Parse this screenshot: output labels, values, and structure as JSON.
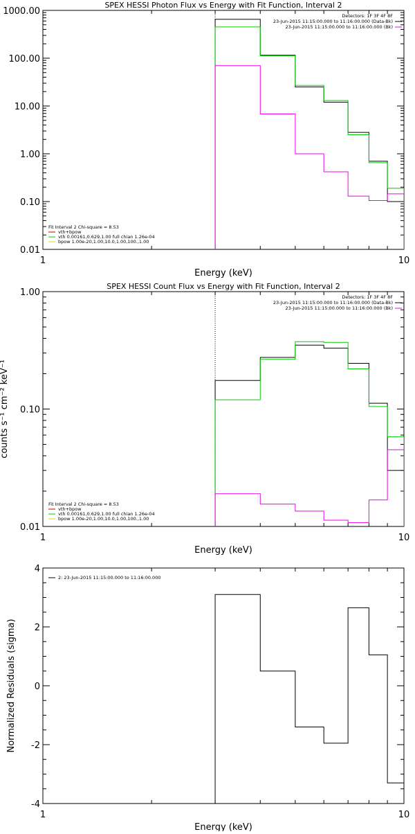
{
  "colors": {
    "data": "#000000",
    "background": "#ee00ee",
    "total_fit": "#00cc00",
    "vth": "#00cc00",
    "bpow": "#dddd00",
    "fit_function": "#cc0000"
  },
  "chart_data": [
    {
      "type": "line",
      "title": "SPEX HESSI Photon Flux vs Energy with Fit Function, Interval 2",
      "xlabel": "Energy (keV)",
      "ylabel": "",
      "xscale": "log",
      "yscale": "log",
      "xlim": [
        1,
        10
      ],
      "ylim": [
        0.01,
        1000
      ],
      "x_ticks": [
        "1",
        "10"
      ],
      "y_ticks": [
        "0.01",
        "0.10",
        "1.00",
        "10.00",
        "100.00",
        "1000.00"
      ],
      "vline_x": 3,
      "legend_position": "top-right",
      "legend": {
        "header": "Detectors: 1F 3F 4F 8F",
        "entries": [
          {
            "text": "23-Jun-2015 11:15:00.000 to 11:16:00.000 (Data-Bk)",
            "color": "#000000"
          },
          {
            "text": "23-Jun-2015 11:15:00.000 to 11:16:00.000 (Bk)",
            "color": "#ee00ee"
          }
        ]
      },
      "fit_box": {
        "header": "Fit Interval  2   Chi-square = 8.53",
        "entries": [
          {
            "text": "vth+bpow",
            "color": "#cc0000"
          },
          {
            "text": "vth 0.00161,0.629,1.00  full chian 1.26e-04",
            "color": "#00cc00"
          },
          {
            "text": "bpow 1.00e-20,1.00,10.0,1.00,100.,1.00",
            "color": "#dddd00"
          }
        ]
      },
      "bin_edges": [
        3,
        4,
        5,
        6,
        7,
        8,
        9,
        10
      ],
      "series": [
        {
          "name": "23-Jun-2015 11:15:00.000 to 11:16:00.000 (Data-Bk)",
          "color": "#000000",
          "values": [
            650,
            115,
            25,
            12,
            2.8,
            0.7,
            0.1
          ]
        },
        {
          "name": "vth+bpow",
          "color": "#00cc00",
          "values": [
            450,
            112,
            27,
            13,
            2.5,
            0.65,
            0.19
          ]
        },
        {
          "name": "23-Jun-2015 11:15:00.000 to 11:16:00.000 (Bk)",
          "color": "#ee00ee",
          "values": [
            70,
            6.8,
            1.0,
            0.42,
            0.13,
            0.105,
            0.145
          ]
        }
      ]
    },
    {
      "type": "line",
      "title": "SPEX HESSI Count Flux vs Energy with Fit Function, Interval 2",
      "xlabel": "Energy (keV)",
      "ylabel": "counts s⁻¹ cm⁻² keV⁻¹",
      "xscale": "log",
      "yscale": "log",
      "xlim": [
        1,
        10
      ],
      "ylim": [
        0.01,
        1
      ],
      "x_ticks": [
        "1",
        "10"
      ],
      "y_ticks": [
        "0.01",
        "0.10",
        "1.00"
      ],
      "vline_x": 3,
      "legend_position": "top-right",
      "legend": {
        "header": "Detectors: 1F 3F 4F 8F",
        "entries": [
          {
            "text": "23-Jun-2015 11:15:00.000 to 11:16:00.000 (Data-Bk)",
            "color": "#000000"
          },
          {
            "text": "23-Jun-2015 11:15:00.000 to 11:16:00.000 (Bk)",
            "color": "#ee00ee"
          }
        ]
      },
      "fit_box": {
        "header": "Fit Interval  2   Chi-square = 8.53",
        "entries": [
          {
            "text": "vth+bpow",
            "color": "#cc0000"
          },
          {
            "text": "vth 0.00161,0.629,1.00  full chian 1.26e-04",
            "color": "#00cc00"
          },
          {
            "text": "bpow 1.00e-20,1.00,10.0,1.00,100.,1.00",
            "color": "#dddd00"
          }
        ]
      },
      "bin_edges": [
        3,
        4,
        5,
        6,
        7,
        8,
        9,
        10
      ],
      "series": [
        {
          "name": "23-Jun-2015 11:15:00.000 to 11:16:00.000 (Data-Bk)",
          "color": "#000000",
          "values": [
            0.175,
            0.275,
            0.35,
            0.33,
            0.245,
            0.112,
            0.03
          ]
        },
        {
          "name": "vth+bpow",
          "color": "#00cc00",
          "values": [
            0.12,
            0.265,
            0.375,
            0.37,
            0.22,
            0.105,
            0.058
          ]
        },
        {
          "name": "23-Jun-2015 11:15:00.000 to 11:16:00.000 (Bk)",
          "color": "#ee00ee",
          "values": [
            0.019,
            0.0155,
            0.0135,
            0.0113,
            0.0108,
            0.0168,
            0.045
          ]
        }
      ]
    },
    {
      "type": "line",
      "title": "",
      "xlabel": "Energy (keV)",
      "ylabel": "Normalized Residuals (sigma)",
      "xscale": "log",
      "yscale": "linear",
      "xlim": [
        1,
        10
      ],
      "ylim": [
        -4,
        4
      ],
      "x_ticks": [
        "1",
        "10"
      ],
      "y_ticks": [
        "-4",
        "-2",
        "0",
        "2",
        "4"
      ],
      "legend_position": "top-left",
      "legend": {
        "entries": [
          {
            "text": "2: 23-Jun-2015 11:15:00.000 to 11:16:00.000",
            "color": "#000000"
          }
        ]
      },
      "bin_edges": [
        3,
        4,
        5,
        6,
        7,
        8,
        9,
        10
      ],
      "series": [
        {
          "name": "2: 23-Jun-2015 11:15:00.000 to 11:16:00.000",
          "color": "#000000",
          "values": [
            3.1,
            0.5,
            -1.4,
            -1.95,
            2.65,
            1.05,
            -3.3
          ]
        }
      ]
    }
  ]
}
